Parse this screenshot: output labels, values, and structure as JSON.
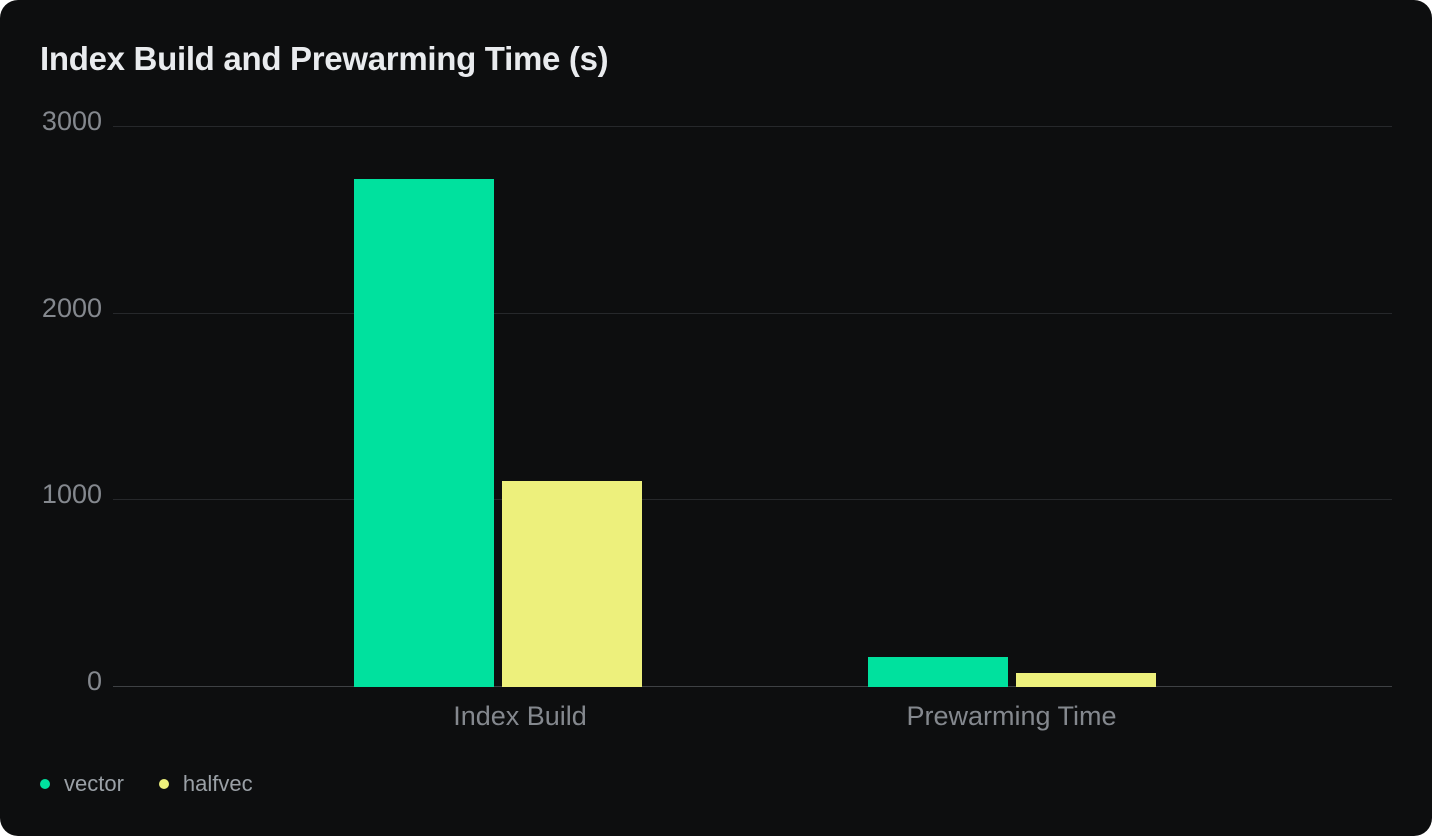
{
  "page": {
    "background": "#ffffff",
    "card_background": "#0d0e0f"
  },
  "chart_data": {
    "type": "bar",
    "title": "Index Build and Prewarming Time (s)",
    "categories": [
      "Index Build",
      "Prewarming Time"
    ],
    "series": [
      {
        "name": "vector",
        "color": "#00e19e",
        "values": [
          2715,
          155
        ]
      },
      {
        "name": "halfvec",
        "color": "#edf07c",
        "values": [
          1100,
          70
        ]
      }
    ],
    "xlabel": "",
    "ylabel": "",
    "ylim": [
      0,
      3000
    ],
    "yticks": [
      0,
      1000,
      2000,
      3000
    ],
    "grid": true,
    "legend_position": "bottom-left",
    "colors": {
      "title": "#e9ebee",
      "grid_line": "#26282b",
      "axis_line": "#3e4144",
      "tick_label": "#84888e",
      "category_label": "#84888e",
      "legend_label": "#9aa0a6"
    }
  }
}
